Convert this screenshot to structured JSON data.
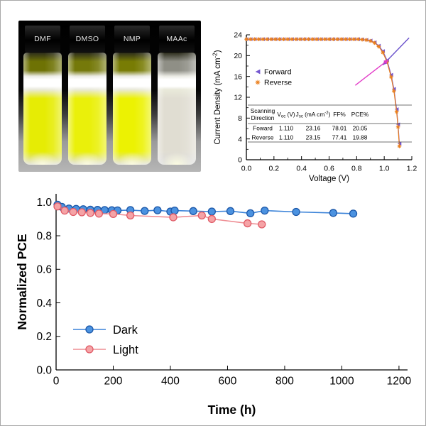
{
  "photo": {
    "vials": [
      {
        "label": "DMF",
        "liquid": "#e6ec04",
        "shade": "#6e7204"
      },
      {
        "label": "DMSO",
        "liquid": "#eaf00a",
        "shade": "#75790a"
      },
      {
        "label": "NMP",
        "liquid": "#ecf202",
        "shade": "#787c04"
      },
      {
        "label": "MAAc",
        "liquid": "#e0ddd2",
        "shade": "#8f8f86"
      }
    ]
  },
  "chart_data": [
    {
      "id": "jv",
      "type": "scatter",
      "xlabel": "Voltage (V)",
      "ylabel": "Current Density (mA cm^{-2})",
      "xlim": [
        0.0,
        1.2
      ],
      "ylim": [
        0,
        24
      ],
      "xticks": [
        0.0,
        0.2,
        0.4,
        0.6,
        0.8,
        1.0,
        1.2
      ],
      "xtick_labels": [
        "0.0",
        "0.2",
        "0.4",
        "0.6",
        "0.8",
        "1.0",
        "1.2"
      ],
      "yticks": [
        0,
        4,
        8,
        12,
        16,
        20,
        24
      ],
      "ytick_labels": [
        "0",
        "4",
        "8",
        "12",
        "16",
        "20",
        "24"
      ],
      "grid": false,
      "legend": {
        "items": [
          {
            "label": "Forward",
            "marker": "tri-left",
            "color": "#7558d0",
            "fill": "#7558d0"
          },
          {
            "label": "Reverse",
            "marker": "star",
            "color": "#ea7f1c",
            "fill": "#ea7f1c"
          }
        ]
      },
      "series": [
        {
          "name": "Forward",
          "marker": "tri-left",
          "color": "#7558d0",
          "fill": "#7558d0",
          "line": true,
          "x": [
            0.0,
            0.03,
            0.06,
            0.09,
            0.12,
            0.15,
            0.18,
            0.21,
            0.24,
            0.27,
            0.3,
            0.33,
            0.36,
            0.39,
            0.42,
            0.45,
            0.48,
            0.51,
            0.54,
            0.57,
            0.6,
            0.63,
            0.66,
            0.69,
            0.72,
            0.75,
            0.78,
            0.81,
            0.84,
            0.87,
            0.9,
            0.93,
            0.96,
            0.99,
            1.02,
            1.05,
            1.07,
            1.09,
            1.1,
            1.11
          ],
          "y": [
            23.16,
            23.16,
            23.16,
            23.16,
            23.16,
            23.16,
            23.16,
            23.16,
            23.16,
            23.16,
            23.16,
            23.16,
            23.16,
            23.16,
            23.16,
            23.16,
            23.16,
            23.16,
            23.16,
            23.16,
            23.16,
            23.16,
            23.16,
            23.16,
            23.16,
            23.16,
            23.16,
            23.16,
            23.1,
            23.03,
            22.88,
            22.55,
            21.9,
            20.85,
            19.1,
            16.3,
            13.6,
            9.7,
            6.8,
            3.1
          ]
        },
        {
          "name": "Reverse",
          "marker": "star",
          "color": "#ea7f1c",
          "fill": "#ea7f1c",
          "line": true,
          "x": [
            0.0,
            0.03,
            0.06,
            0.09,
            0.12,
            0.15,
            0.18,
            0.21,
            0.24,
            0.27,
            0.3,
            0.33,
            0.36,
            0.39,
            0.42,
            0.45,
            0.48,
            0.51,
            0.54,
            0.57,
            0.6,
            0.63,
            0.66,
            0.69,
            0.72,
            0.75,
            0.78,
            0.81,
            0.84,
            0.87,
            0.9,
            0.93,
            0.96,
            0.99,
            1.02,
            1.05,
            1.07,
            1.09,
            1.1,
            1.11
          ],
          "y": [
            23.15,
            23.15,
            23.15,
            23.15,
            23.15,
            23.15,
            23.15,
            23.15,
            23.15,
            23.15,
            23.15,
            23.15,
            23.15,
            23.15,
            23.15,
            23.15,
            23.15,
            23.15,
            23.15,
            23.15,
            23.15,
            23.15,
            23.15,
            23.15,
            23.15,
            23.15,
            23.15,
            23.15,
            23.08,
            23.0,
            22.82,
            22.45,
            21.75,
            20.6,
            18.8,
            15.9,
            13.2,
            9.2,
            6.3,
            2.6
          ]
        }
      ],
      "arrows": [
        {
          "x1": 1.18,
          "y1": 23.4,
          "x2": 0.99,
          "y2": 18.2,
          "color": "#6a52cc"
        },
        {
          "x1": 0.79,
          "y1": 14.3,
          "x2": 1.03,
          "y2": 19.2,
          "color": "#e23cc8"
        }
      ],
      "table": {
        "headers": [
          "Scanning\nDirection",
          "V_{oc} (V)",
          "J_{sc} (mA cm^{-2})",
          "FF%",
          "PCE%"
        ],
        "rows": [
          [
            "Foward",
            "1.110",
            "23.16",
            "78.01",
            "20.05"
          ],
          [
            "Reverse",
            "1.110",
            "23.15",
            "77.41",
            "19.88"
          ]
        ]
      }
    },
    {
      "id": "stability",
      "type": "line",
      "xlabel": "Time (h)",
      "ylabel": "Normalized PCE",
      "xlim": [
        0,
        1230
      ],
      "ylim": [
        0,
        1.05
      ],
      "xticks": [
        0,
        200,
        400,
        600,
        800,
        1000,
        1200
      ],
      "xtick_labels": [
        "0",
        "200",
        "400",
        "600",
        "800",
        "1000",
        "1200"
      ],
      "yticks": [
        0,
        0.2,
        0.4,
        0.6,
        0.8,
        1.0
      ],
      "ytick_labels": [
        "0.0",
        "0.2",
        "0.4",
        "0.6",
        "0.8",
        "1.0"
      ],
      "grid": false,
      "legend": {
        "items": [
          {
            "label": "Dark",
            "marker": "circle",
            "color": "#1b57a8",
            "fill": "#4b92e0",
            "line_color": "#3a82d8"
          },
          {
            "label": "Light",
            "marker": "circle",
            "color": "#e05a66",
            "fill": "#f5a3a6",
            "line_color": "#ee8d93"
          }
        ]
      },
      "series": [
        {
          "name": "Dark",
          "marker": "circle",
          "color": "#1b57a8",
          "fill": "#4b92e0",
          "line_color": "#3a82d8",
          "line": true,
          "x": [
            5,
            20,
            45,
            70,
            95,
            120,
            145,
            170,
            195,
            215,
            260,
            310,
            355,
            400,
            415,
            480,
            545,
            610,
            680,
            730,
            840,
            970,
            1040
          ],
          "y": [
            0.985,
            0.972,
            0.962,
            0.96,
            0.958,
            0.955,
            0.954,
            0.953,
            0.952,
            0.951,
            0.953,
            0.948,
            0.952,
            0.944,
            0.95,
            0.947,
            0.944,
            0.947,
            0.934,
            0.95,
            0.942,
            0.936,
            0.932
          ]
        },
        {
          "name": "Light",
          "marker": "circle",
          "color": "#e05a66",
          "fill": "#f5a3a6",
          "line_color": "#ee8d93",
          "line": true,
          "x": [
            5,
            30,
            60,
            90,
            120,
            150,
            200,
            260,
            410,
            510,
            545,
            670,
            720
          ],
          "y": [
            0.975,
            0.95,
            0.942,
            0.94,
            0.936,
            0.932,
            0.93,
            0.921,
            0.91,
            0.921,
            0.9,
            0.874,
            0.868
          ]
        }
      ]
    }
  ]
}
